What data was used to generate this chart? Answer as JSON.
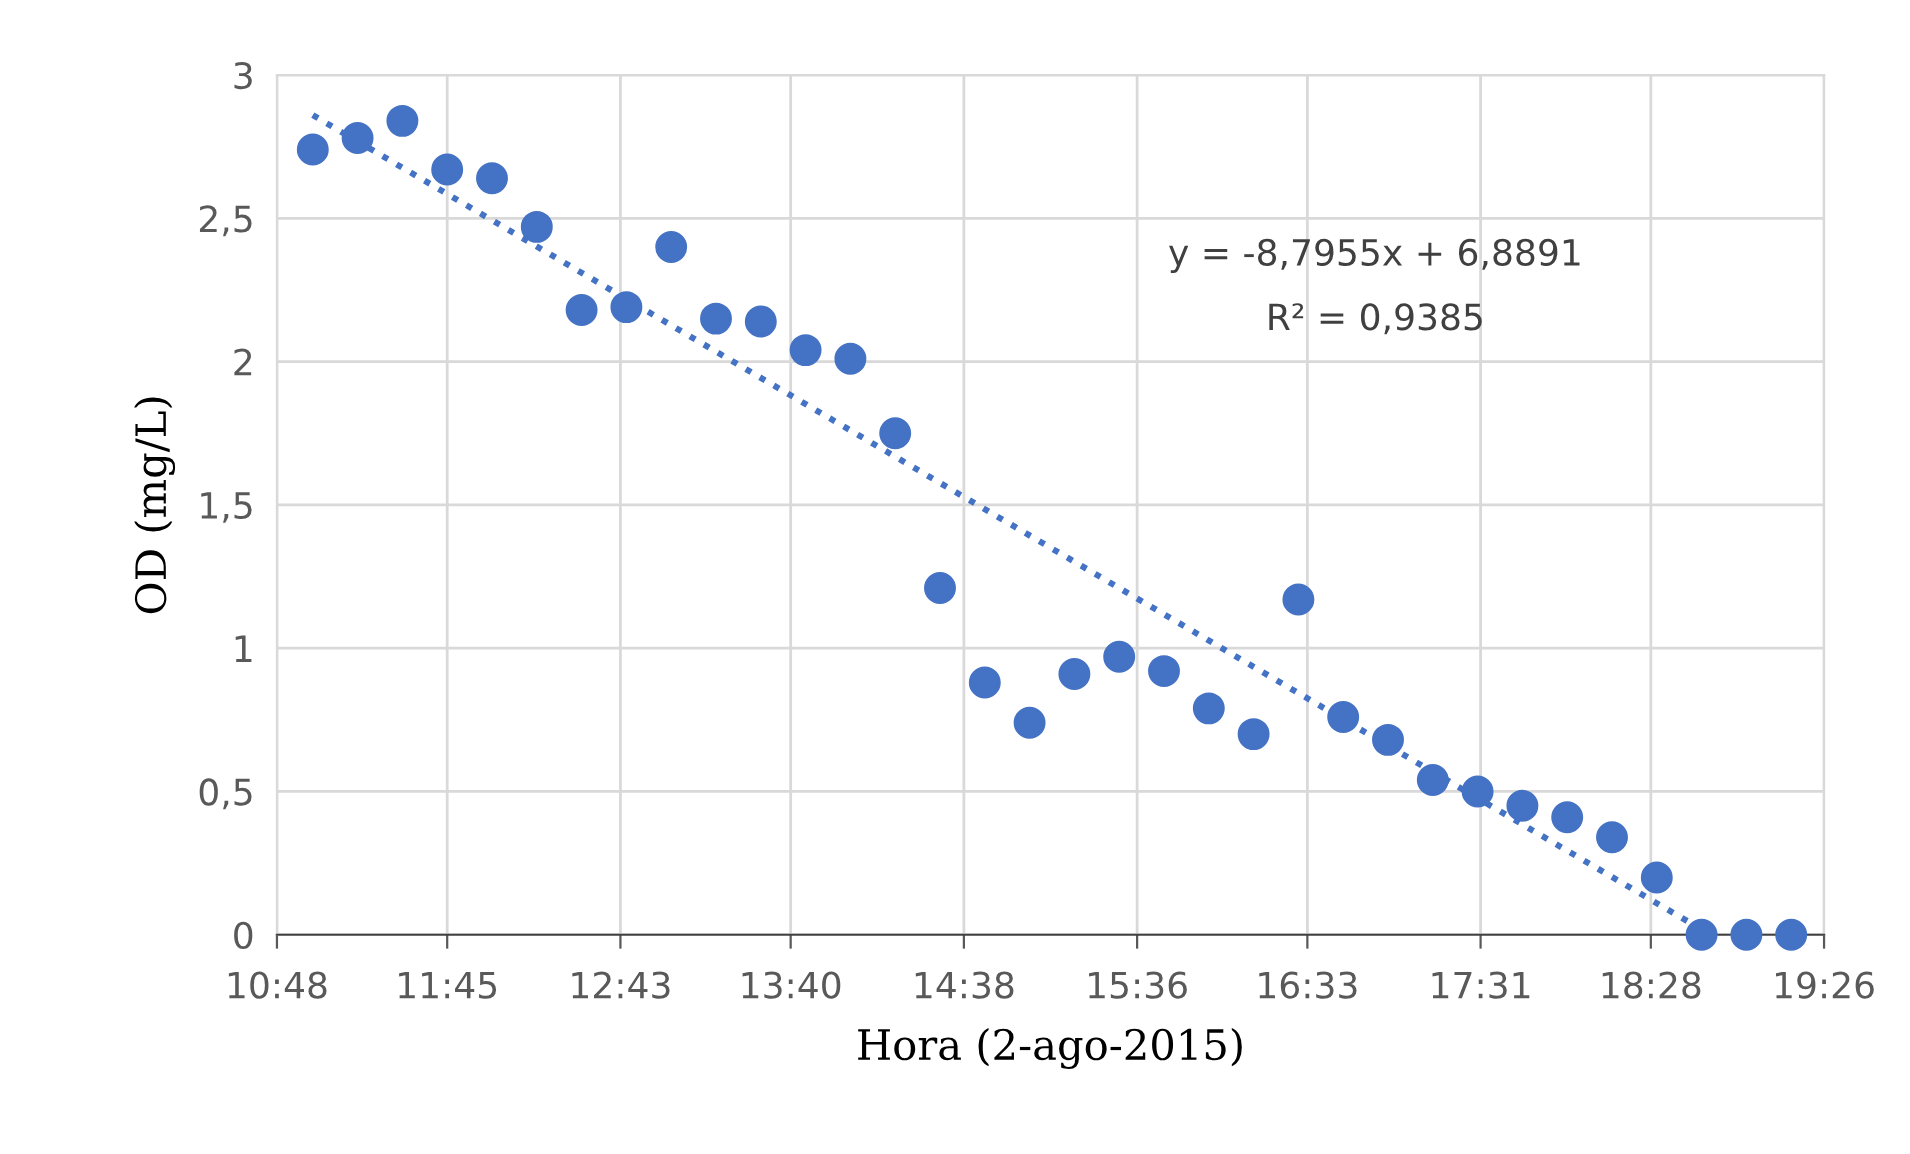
{
  "chart_data": {
    "type": "scatter",
    "xlabel": "Hora (2-ago-2015)",
    "ylabel": "OD (mg/L)",
    "series": [
      {
        "color": "#4472c4",
        "marker": "circle",
        "x": [
          11.0,
          11.25,
          11.5,
          11.75,
          12.0,
          12.25,
          12.5,
          12.75,
          13.0,
          13.25,
          13.5,
          13.75,
          14.0,
          14.25,
          14.5,
          14.75,
          15.0,
          15.25,
          15.5,
          15.75,
          16.0,
          16.25,
          16.5,
          16.75,
          17.0,
          17.25,
          17.5,
          17.75,
          18.0,
          18.25,
          18.5,
          18.75,
          19.0,
          19.25
        ],
        "values": [
          2.74,
          2.78,
          2.84,
          2.67,
          2.64,
          2.47,
          2.18,
          2.19,
          2.4,
          2.15,
          2.14,
          2.04,
          2.01,
          1.75,
          1.21,
          0.88,
          0.74,
          0.91,
          0.97,
          0.92,
          0.79,
          0.7,
          1.17,
          0.76,
          0.68,
          0.54,
          0.5,
          0.45,
          0.41,
          0.34,
          0.2,
          0,
          0,
          0
        ]
      },
      {
        "type": "line",
        "color": "#4472c4",
        "line_style": "dotted",
        "marker": "none",
        "x": [
          11.0,
          18.8
        ],
        "values": [
          2.86,
          0.0
        ]
      }
    ],
    "xlim": [
      10.8,
      19.4333
    ],
    "xticks": [
      {
        "value": 10.8,
        "label": "10:48"
      },
      {
        "value": 11.75,
        "label": "11:45"
      },
      {
        "value": 12.7167,
        "label": "12:43"
      },
      {
        "value": 13.6667,
        "label": "13:40"
      },
      {
        "value": 14.6333,
        "label": "14:38"
      },
      {
        "value": 15.6,
        "label": "15:36"
      },
      {
        "value": 16.55,
        "label": "16:33"
      },
      {
        "value": 17.5167,
        "label": "17:31"
      },
      {
        "value": 18.4667,
        "label": "18:28"
      },
      {
        "value": 19.4333,
        "label": "19:26"
      }
    ],
    "ylim": [
      0,
      3
    ],
    "yticks": [
      0,
      {
        "value": 0.5,
        "label": "0,5"
      },
      1,
      {
        "value": 1.5,
        "label": "1,5"
      },
      2,
      {
        "value": 2.5,
        "label": "2,5"
      },
      3
    ],
    "grid": true,
    "annotations": [
      "y = -8,7955x + 6,8891",
      "R² = 0,9385"
    ]
  }
}
